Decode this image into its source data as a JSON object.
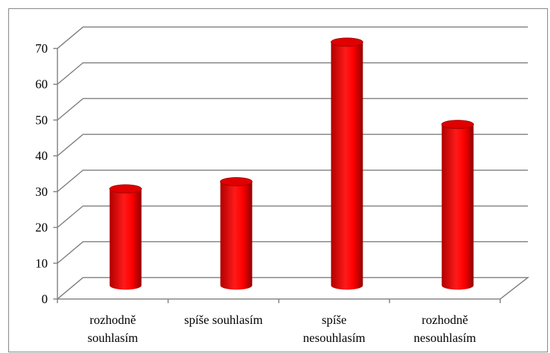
{
  "chart_data": {
    "type": "bar",
    "style": "3d-cylinder",
    "categories": [
      [
        "rozhodně",
        "souhlasím"
      ],
      [
        "spíše souhlasím"
      ],
      [
        "spíše",
        "nesouhlasím"
      ],
      [
        "rozhodně",
        "nesouhlasím"
      ]
    ],
    "values": [
      27,
      29,
      68,
      45
    ],
    "ylim": [
      0,
      70
    ],
    "yticks": [
      0,
      10,
      20,
      30,
      40,
      50,
      60,
      70
    ],
    "grid": true,
    "legend": "none",
    "title": "",
    "xlabel": "",
    "ylabel": "",
    "colors": {
      "bar": "#ff0000",
      "bar_dark": "#8b0000",
      "bar_top": "#e00000",
      "grid": "#808080"
    }
  }
}
